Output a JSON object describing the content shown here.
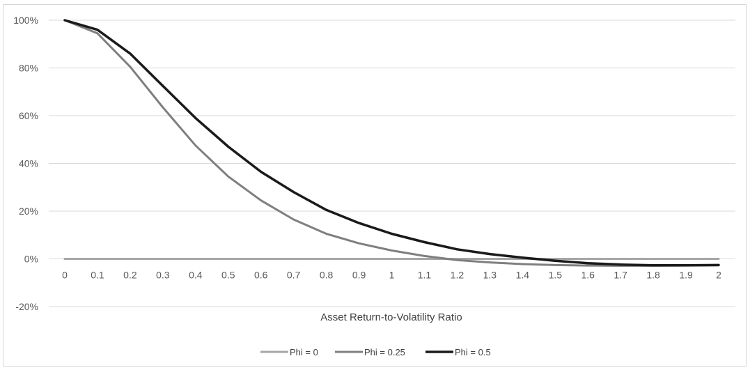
{
  "chart_data": {
    "type": "line",
    "title": "",
    "xlabel": "Asset Return-to-Volatility Ratio",
    "ylabel": "",
    "categories": [
      "0",
      "0.1",
      "0.2",
      "0.3",
      "0.4",
      "0.5",
      "0.6",
      "0.7",
      "0.8",
      "0.9",
      "1",
      "1.1",
      "1.2",
      "1.3",
      "1.4",
      "1.5",
      "1.6",
      "1.7",
      "1.8",
      "1.9",
      "2"
    ],
    "ylim": [
      -20,
      100
    ],
    "yticks": [
      "100%",
      "80%",
      "60%",
      "40%",
      "20%",
      "0%",
      "-20%"
    ],
    "ytick_values": [
      100,
      80,
      60,
      40,
      20,
      0,
      -20
    ],
    "grid": "horizontal",
    "legend_position": "bottom",
    "series": [
      {
        "name": "Phi = 0",
        "color": "#a6a6a6",
        "values": [
          0,
          0,
          0,
          0,
          0,
          0,
          0,
          0,
          0,
          0,
          0,
          0,
          0,
          0,
          0,
          0,
          0,
          0,
          0,
          0,
          0
        ]
      },
      {
        "name": "Phi = 0.25",
        "color": "#7f7f7f",
        "values": [
          100,
          94.5,
          80.5,
          63.5,
          47.5,
          34.5,
          24.5,
          16.5,
          10.5,
          6.5,
          3.5,
          1.2,
          -0.5,
          -1.5,
          -2.2,
          -2.6,
          -2.8,
          -2.9,
          -2.9,
          -2.8,
          -2.7
        ]
      },
      {
        "name": "Phi = 0.5",
        "color": "#1a1a1a",
        "values": [
          100,
          96,
          86,
          72.5,
          59,
          47,
          36.5,
          28,
          20.5,
          15,
          10.5,
          7,
          4,
          2,
          0.5,
          -0.8,
          -1.8,
          -2.4,
          -2.7,
          -2.7,
          -2.6
        ]
      }
    ]
  }
}
